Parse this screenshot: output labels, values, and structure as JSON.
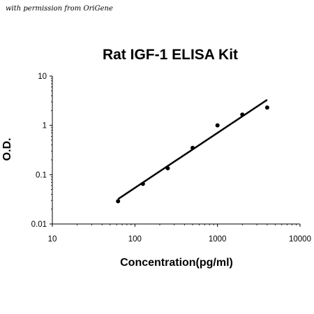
{
  "credit": "with permission from OriGene",
  "chart_data": {
    "type": "scatter",
    "title": "Rat IGF-1 ELISA Kit",
    "xlabel": "Concentration(pg/ml)",
    "ylabel": "O.D.",
    "xscale": "log",
    "yscale": "log",
    "xlim": [
      10,
      10000
    ],
    "ylim": [
      0.01,
      10
    ],
    "xticks": [
      10,
      100,
      1000,
      10000
    ],
    "xtick_labels": [
      "10",
      "100",
      "1000",
      "10000"
    ],
    "yticks": [
      0.01,
      0.1,
      1,
      10
    ],
    "ytick_labels": [
      "0.01",
      "0.1",
      "1",
      "10"
    ],
    "grid": false,
    "legend": false,
    "series": [
      {
        "x": [
          62.5,
          125,
          250,
          500,
          1000,
          2000,
          4000
        ],
        "y": [
          0.029,
          0.065,
          0.135,
          0.35,
          1.0,
          1.65,
          2.3
        ],
        "color": "#000000"
      }
    ],
    "fit_line": {
      "x": [
        62.5,
        4000
      ],
      "y": [
        0.032,
        3.3
      ],
      "color": "#000000"
    }
  }
}
